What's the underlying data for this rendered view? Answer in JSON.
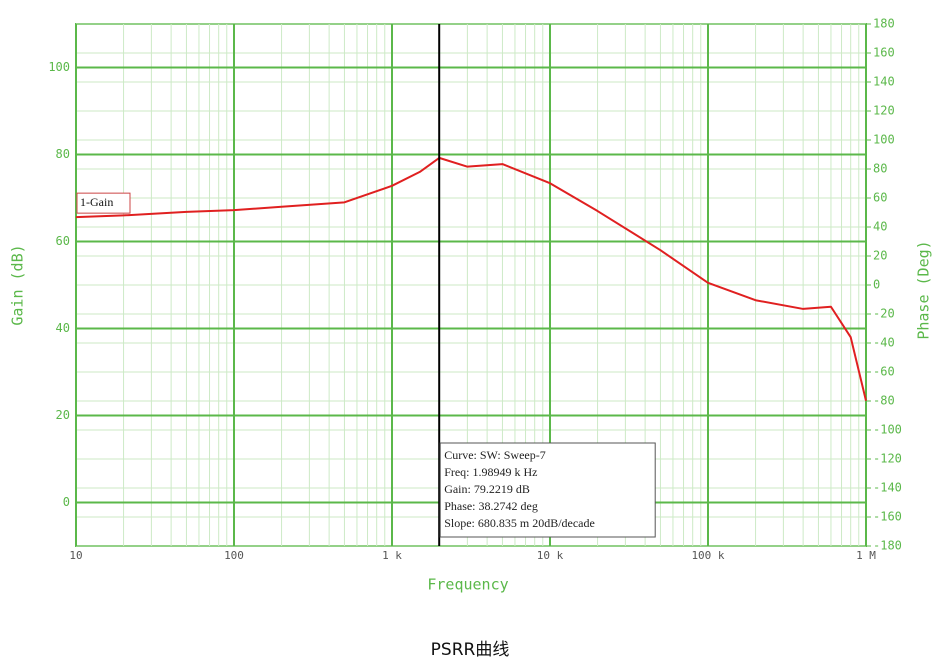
{
  "chart_data": {
    "type": "line",
    "title": "PSRR曲线",
    "xlabel": "Frequency",
    "ylabel": "Gain (dB)",
    "y2label": "Phase (Deg)",
    "xscale": "log",
    "x": [
      10,
      20,
      50,
      100,
      200,
      500,
      1000,
      1500,
      1989.49,
      3000,
      5000,
      10000,
      20000,
      50000,
      100000,
      200000,
      400000,
      600000,
      800000,
      1000000
    ],
    "series": [
      {
        "name": "1-Gain",
        "color": "#e02020",
        "values": [
          65.6,
          66,
          66.8,
          67.2,
          68,
          69,
          72.8,
          76,
          79.2219,
          77.2,
          77.8,
          73.4,
          67,
          58,
          50.5,
          46.5,
          44.5,
          45,
          38,
          23.4
        ]
      }
    ],
    "xlim": [
      10,
      1000000
    ],
    "xticks": [
      10,
      100,
      {
        "value": 1000,
        "label": "1 k"
      },
      {
        "value": 10000,
        "label": "10 k"
      },
      {
        "value": 100000,
        "label": "100 k"
      },
      {
        "value": 1000000,
        "label": "1 M"
      }
    ],
    "ylim": [
      -10,
      110
    ],
    "yticks": [
      0,
      20,
      40,
      60,
      80,
      100
    ],
    "y2lim": [
      -180,
      180
    ],
    "y2ticks": [
      -180,
      -160,
      -140,
      -120,
      -100,
      -80,
      -60,
      -40,
      -20,
      0,
      20,
      40,
      60,
      80,
      100,
      120,
      140,
      160,
      180
    ],
    "grid": true,
    "cursor": {
      "x": 1989.49,
      "lines": [
        "Curve: SW: Sweep-7",
        "Freq: 1.98949 k Hz",
        "Gain: 79.2219 dB",
        "Phase: 38.2742 deg",
        "Slope: 680.835 m 20dB/decade"
      ]
    }
  }
}
